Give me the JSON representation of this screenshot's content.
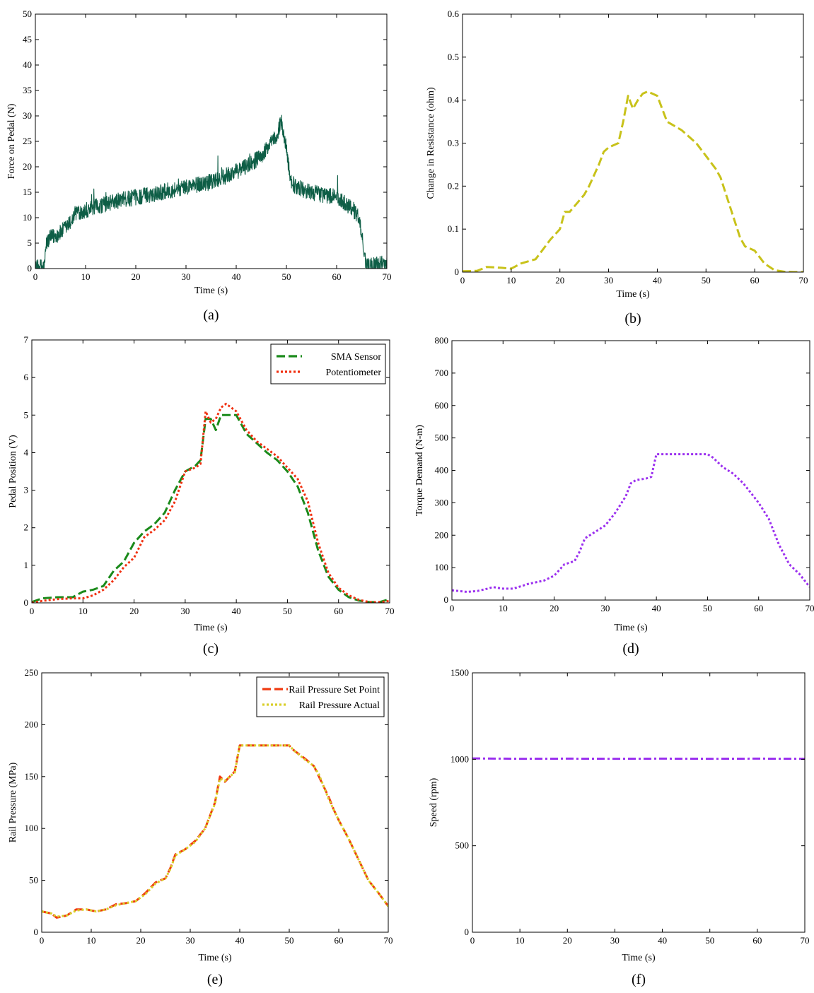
{
  "chart_data": [
    {
      "id": "a",
      "type": "line",
      "caption": "(a)",
      "xlabel": "Time (s)",
      "ylabel": "Force on Pedal (N)",
      "xlim": [
        0,
        70
      ],
      "ylim": [
        0,
        50
      ],
      "xticks": [
        0,
        10,
        20,
        30,
        40,
        50,
        60,
        70
      ],
      "yticks": [
        0,
        5,
        10,
        15,
        20,
        25,
        30,
        35,
        40,
        45,
        50
      ],
      "grid": false,
      "noise": 1.6,
      "series": [
        {
          "color": "#0e5e46",
          "style": "solid",
          "x": [
            0,
            1.8,
            2.2,
            3,
            5,
            7,
            8,
            10,
            15,
            20,
            25,
            30,
            35,
            40,
            45,
            48,
            49,
            50,
            51,
            52,
            55,
            60,
            63,
            64.5,
            65.5,
            66,
            68,
            70
          ],
          "y": [
            0,
            0.5,
            5,
            6,
            7,
            9,
            11,
            11.5,
            13,
            14,
            15,
            16,
            17,
            19,
            22,
            26,
            29,
            23,
            17,
            16,
            15,
            14,
            12,
            10,
            3,
            0.5,
            0.8,
            1
          ]
        }
      ]
    },
    {
      "id": "b",
      "type": "line",
      "caption": "(b)",
      "xlabel": "Time (s)",
      "ylabel": "Change in Resistance (ohm)",
      "xlim": [
        0,
        70
      ],
      "ylim": [
        0,
        0.6
      ],
      "xticks": [
        0,
        10,
        20,
        30,
        40,
        50,
        60,
        70
      ],
      "yticks": [
        0,
        0.1,
        0.2,
        0.3,
        0.4,
        0.5,
        0.6
      ],
      "grid": false,
      "series": [
        {
          "color": "#c8c21a",
          "style": "dashed",
          "x": [
            0,
            3,
            5,
            8,
            10,
            12,
            15,
            17,
            18,
            20,
            21,
            22,
            25,
            26,
            28,
            29,
            30,
            32,
            33,
            34,
            35,
            36,
            37,
            38,
            40,
            42,
            45,
            48,
            50,
            52,
            53,
            55,
            57,
            58,
            60,
            62,
            64,
            66,
            68,
            70
          ],
          "y": [
            0.002,
            0.003,
            0.012,
            0.01,
            0.008,
            0.02,
            0.03,
            0.06,
            0.075,
            0.1,
            0.14,
            0.14,
            0.18,
            0.2,
            0.25,
            0.28,
            0.29,
            0.3,
            0.35,
            0.41,
            0.38,
            0.4,
            0.415,
            0.42,
            0.41,
            0.35,
            0.33,
            0.3,
            0.27,
            0.24,
            0.22,
            0.15,
            0.08,
            0.06,
            0.05,
            0.02,
            0.005,
            0.001,
            0,
            0
          ]
        }
      ]
    },
    {
      "id": "c",
      "type": "line",
      "caption": "(c)",
      "xlabel": "Time (s)",
      "ylabel": "Pedal Position (V)",
      "xlim": [
        0,
        70
      ],
      "ylim": [
        0,
        7
      ],
      "xticks": [
        0,
        10,
        20,
        30,
        40,
        50,
        60,
        70
      ],
      "yticks": [
        0,
        1,
        2,
        3,
        4,
        5,
        6,
        7
      ],
      "grid": false,
      "legend_position": "top-right",
      "series": [
        {
          "name": "SMA Sensor",
          "color": "#1a8a1a",
          "style": "dashed",
          "x": [
            0,
            2,
            5,
            8,
            10,
            12,
            14,
            16,
            18,
            20,
            22,
            24,
            26,
            28,
            30,
            32,
            33,
            34,
            35,
            36,
            37,
            38,
            40,
            42,
            44,
            46,
            48,
            50,
            52,
            54,
            56,
            58,
            60,
            62,
            64,
            66,
            68,
            70
          ],
          "y": [
            0.02,
            0.12,
            0.15,
            0.15,
            0.3,
            0.35,
            0.45,
            0.85,
            1.1,
            1.6,
            1.9,
            2.1,
            2.4,
            3.0,
            3.5,
            3.65,
            3.8,
            4.9,
            4.9,
            4.6,
            5.0,
            5.0,
            5.0,
            4.5,
            4.25,
            4.0,
            3.8,
            3.5,
            3.1,
            2.4,
            1.4,
            0.7,
            0.35,
            0.15,
            0.06,
            0.02,
            0.02,
            0.1
          ]
        },
        {
          "name": "Potentiometer",
          "color": "#f03010",
          "style": "dotted",
          "x": [
            0,
            2,
            5,
            8,
            10,
            12,
            14,
            16,
            18,
            20,
            22,
            24,
            26,
            28,
            30,
            32,
            33,
            34,
            35,
            36,
            37,
            38,
            40,
            42,
            44,
            46,
            48,
            50,
            52,
            54,
            56,
            58,
            60,
            62,
            64,
            66,
            68,
            70
          ],
          "y": [
            0.0,
            0.05,
            0.1,
            0.12,
            0.12,
            0.2,
            0.35,
            0.6,
            0.95,
            1.2,
            1.75,
            1.95,
            2.2,
            2.7,
            3.5,
            3.6,
            3.7,
            5.1,
            4.8,
            4.9,
            5.2,
            5.3,
            5.1,
            4.6,
            4.3,
            4.1,
            3.9,
            3.6,
            3.3,
            2.7,
            1.6,
            0.8,
            0.4,
            0.2,
            0.08,
            0.02,
            0.02,
            0.05
          ]
        }
      ]
    },
    {
      "id": "d",
      "type": "line",
      "caption": "(d)",
      "xlabel": "Time (s)",
      "ylabel": "Torque Demand (N-m)",
      "xlim": [
        0,
        70
      ],
      "ylim": [
        0,
        800
      ],
      "xticks": [
        0,
        10,
        20,
        30,
        40,
        50,
        60,
        70
      ],
      "yticks": [
        0,
        100,
        200,
        300,
        400,
        500,
        600,
        700,
        800
      ],
      "grid": false,
      "series": [
        {
          "color": "#9b30ef",
          "style": "dotted",
          "x": [
            0,
            3,
            5,
            7,
            8,
            10,
            12,
            15,
            18,
            20,
            22,
            24,
            25,
            26,
            28,
            30,
            32,
            34,
            35,
            36,
            38,
            39,
            40,
            45,
            50,
            51,
            53,
            55,
            57,
            58,
            59,
            60,
            62,
            64,
            66,
            68,
            70
          ],
          "y": [
            30,
            25,
            28,
            35,
            40,
            35,
            35,
            50,
            60,
            75,
            110,
            120,
            150,
            190,
            210,
            230,
            270,
            320,
            360,
            370,
            375,
            380,
            450,
            450,
            450,
            440,
            410,
            390,
            360,
            340,
            320,
            300,
            250,
            170,
            110,
            80,
            40
          ]
        }
      ]
    },
    {
      "id": "e",
      "type": "line",
      "caption": "(e)",
      "xlabel": "Time (s)",
      "ylabel": "Rail Pressure (MPa)",
      "xlim": [
        0,
        70
      ],
      "ylim": [
        0,
        250
      ],
      "xticks": [
        0,
        10,
        20,
        30,
        40,
        50,
        60,
        70
      ],
      "yticks": [
        0,
        50,
        100,
        150,
        200,
        250
      ],
      "grid": false,
      "legend_position": "top-right",
      "series": [
        {
          "name": "Rail Pressure Set Point",
          "color": "#f03a10",
          "style": "dashed",
          "x": [
            0,
            2,
            3,
            5,
            7,
            9,
            11,
            13,
            15,
            17,
            19,
            21,
            23,
            25,
            26,
            27,
            29,
            31,
            33,
            35,
            36,
            37,
            39,
            40,
            45,
            50,
            51,
            53,
            55,
            56,
            57,
            58,
            59,
            60,
            62,
            64,
            66,
            68,
            70
          ],
          "y": [
            20,
            18,
            14,
            16,
            22,
            22,
            20,
            22,
            27,
            28,
            30,
            38,
            48,
            52,
            62,
            75,
            80,
            88,
            100,
            125,
            150,
            145,
            155,
            180,
            180,
            180,
            175,
            168,
            160,
            150,
            140,
            130,
            118,
            108,
            90,
            70,
            50,
            38,
            25
          ]
        },
        {
          "name": "Rail Pressure Actual",
          "color": "#d9cf2a",
          "style": "dotted",
          "x": [
            0,
            2,
            3,
            5,
            7,
            9,
            11,
            13,
            15,
            17,
            19,
            21,
            23,
            25,
            26,
            27,
            29,
            31,
            33,
            35,
            36,
            37,
            39,
            40,
            45,
            50,
            51,
            53,
            55,
            56,
            57,
            58,
            59,
            60,
            62,
            64,
            66,
            68,
            70
          ],
          "y": [
            20,
            18,
            15,
            16,
            21,
            22,
            20,
            22,
            26,
            28,
            30,
            37,
            47,
            52,
            61,
            74,
            80,
            87,
            100,
            124,
            148,
            146,
            154,
            180,
            180,
            180,
            175,
            167,
            160,
            152,
            140,
            128,
            118,
            108,
            90,
            70,
            50,
            38,
            25
          ]
        }
      ]
    },
    {
      "id": "f",
      "type": "line",
      "caption": "(f)",
      "xlabel": "Time (s)",
      "ylabel": "Speed (rpm)",
      "xlim": [
        0,
        70
      ],
      "ylim": [
        0,
        1500
      ],
      "xticks": [
        0,
        10,
        20,
        30,
        40,
        50,
        60,
        70
      ],
      "yticks": [
        0,
        500,
        1000,
        1500
      ],
      "grid": false,
      "series": [
        {
          "color": "#9b30ef",
          "style": "dashdot",
          "x": [
            0,
            10,
            20,
            30,
            40,
            50,
            60,
            70
          ],
          "y": [
            1005,
            1003,
            1004,
            1003,
            1004,
            1003,
            1004,
            1003
          ]
        }
      ]
    }
  ]
}
